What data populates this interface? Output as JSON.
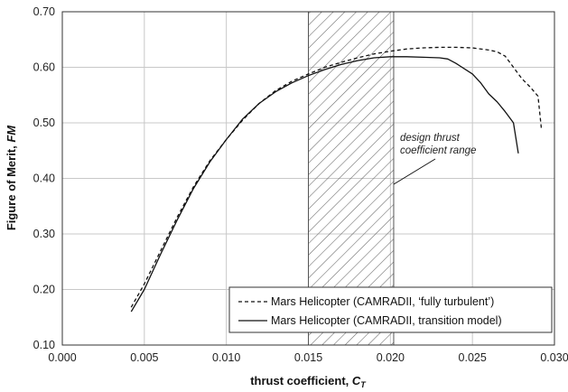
{
  "chart_data": {
    "type": "line",
    "xlabel": "thrust coefficient, ",
    "xlabel_symbol": "C",
    "xlabel_subscript": "T",
    "ylabel": "Figure of Merit, ",
    "ylabel_symbol": "FM",
    "xlim": [
      0.0,
      0.03
    ],
    "ylim": [
      0.1,
      0.7
    ],
    "x_ticks": [
      "0.000",
      "0.005",
      "0.010",
      "0.015",
      "0.020",
      "0.025",
      "0.030"
    ],
    "y_ticks": [
      "0.10",
      "0.20",
      "0.30",
      "0.40",
      "0.50",
      "0.60",
      "0.70"
    ],
    "grid": true,
    "legend_position": "bottom-right",
    "shaded_region": {
      "x_range": [
        0.015,
        0.0202
      ],
      "pattern": "diagonal hatch"
    },
    "annotation": {
      "line1": "design thrust",
      "line2": "coefficient range"
    },
    "series": [
      {
        "name": "Mars Helicopter (CAMRADII, ‘fully turbulent’)",
        "style": "dashed",
        "color": "#111111",
        "x": [
          0.0042,
          0.005,
          0.006,
          0.007,
          0.008,
          0.009,
          0.01,
          0.011,
          0.012,
          0.013,
          0.014,
          0.015,
          0.016,
          0.017,
          0.018,
          0.019,
          0.02,
          0.021,
          0.022,
          0.023,
          0.024,
          0.025,
          0.026,
          0.0265,
          0.027,
          0.0275,
          0.028,
          0.0285,
          0.029,
          0.0292
        ],
        "y": [
          0.168,
          0.21,
          0.27,
          0.33,
          0.385,
          0.432,
          0.47,
          0.505,
          0.535,
          0.558,
          0.575,
          0.588,
          0.6,
          0.609,
          0.617,
          0.624,
          0.629,
          0.633,
          0.635,
          0.636,
          0.636,
          0.635,
          0.631,
          0.628,
          0.62,
          0.6,
          0.58,
          0.565,
          0.548,
          0.49
        ]
      },
      {
        "name": "Mars Helicopter (CAMRADII, transition model)",
        "style": "solid",
        "color": "#111111",
        "x": [
          0.0042,
          0.005,
          0.006,
          0.007,
          0.008,
          0.009,
          0.01,
          0.011,
          0.012,
          0.013,
          0.014,
          0.015,
          0.016,
          0.017,
          0.018,
          0.019,
          0.02,
          0.021,
          0.022,
          0.023,
          0.0235,
          0.024,
          0.025,
          0.0255,
          0.026,
          0.0265,
          0.027,
          0.0275,
          0.0278
        ],
        "y": [
          0.16,
          0.2,
          0.264,
          0.325,
          0.382,
          0.43,
          0.47,
          0.507,
          0.535,
          0.556,
          0.572,
          0.585,
          0.596,
          0.605,
          0.612,
          0.617,
          0.619,
          0.619,
          0.618,
          0.617,
          0.615,
          0.607,
          0.588,
          0.572,
          0.552,
          0.538,
          0.52,
          0.5,
          0.445
        ]
      }
    ]
  }
}
